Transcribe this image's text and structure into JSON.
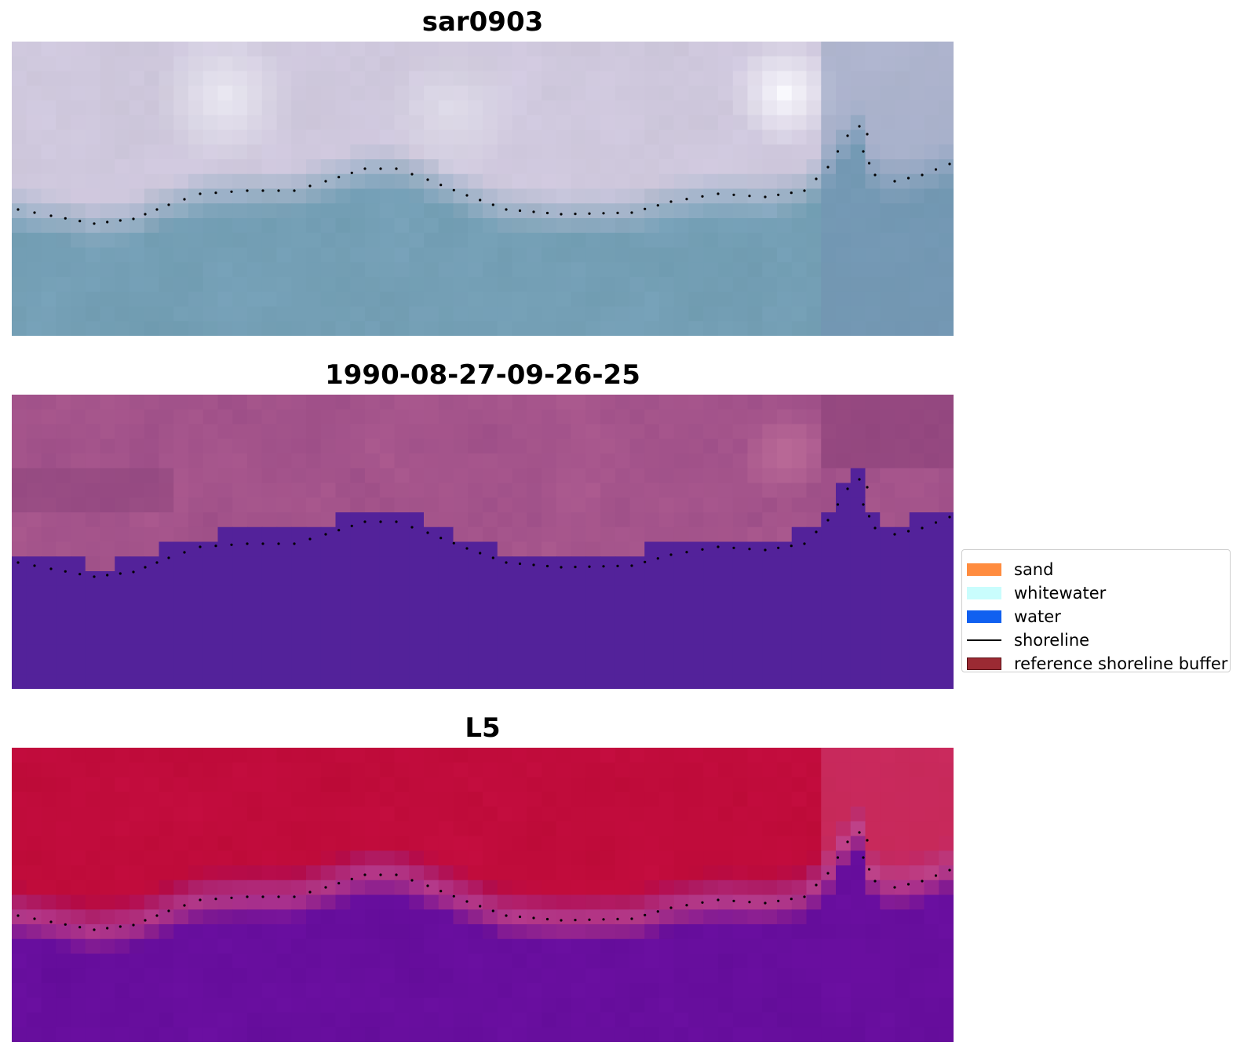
{
  "panels": [
    {
      "title": "sar0903"
    },
    {
      "title": "1990-08-27-09-26-25"
    },
    {
      "title": "L5"
    }
  ],
  "legend": {
    "items": [
      {
        "label": "sand",
        "color": "#ff8c3f",
        "kind": "patch"
      },
      {
        "label": "whitewater",
        "color": "#c9fdfd",
        "kind": "patch"
      },
      {
        "label": "water",
        "color": "#1060f0",
        "kind": "patch"
      },
      {
        "label": "shoreline",
        "color": "#000000",
        "kind": "line"
      },
      {
        "label": "reference shoreline buffer",
        "color": "#9b2a33",
        "kind": "patch"
      }
    ]
  },
  "colors": {
    "water_class": "#53229a",
    "land_class": "#9a4c86",
    "rgb_land": "#c9c3d6",
    "rgb_water": "#6e9aae",
    "ndwi_high": "#bb0a36",
    "ndwi_low": "#620c98"
  }
}
